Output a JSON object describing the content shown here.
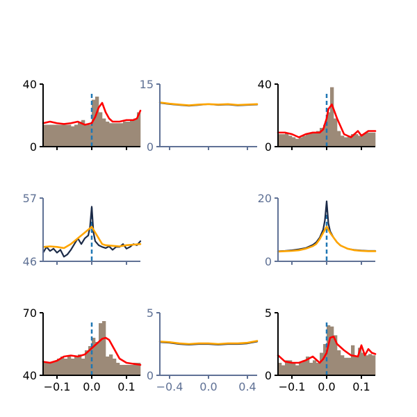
{
  "figure": {
    "background": "#ffffff",
    "colors": {
      "hist": "#9c8a78",
      "red": "#ff0000",
      "navy": "#1b2a47",
      "orange": "#ffa500",
      "dashed": "#1f77b4",
      "axis_black": "#000000",
      "axis_slate": "#5f7195"
    }
  },
  "chart_data": [
    {
      "id": "r1c1",
      "type": "bar",
      "axis_color": "black",
      "xlim": [
        -0.14,
        0.14
      ],
      "ylim": [
        0,
        40
      ],
      "ytick_labels": [
        "0",
        "40"
      ],
      "xticks": [
        -0.1,
        0.0,
        0.1
      ],
      "xtick_labels": [],
      "vline": 0,
      "hist": {
        "x0": -0.14,
        "width": 0.01,
        "values": [
          14,
          14,
          14,
          14,
          14,
          14,
          14,
          14,
          13,
          14,
          16,
          17,
          14,
          14,
          30,
          32,
          22,
          18,
          16,
          15,
          15,
          15,
          15,
          16,
          16,
          17,
          18,
          22
        ]
      },
      "lines": [
        {
          "color": "red",
          "x": [
            -0.14,
            -0.12,
            -0.1,
            -0.08,
            -0.06,
            -0.04,
            -0.02,
            0.0,
            0.01,
            0.02,
            0.03,
            0.04,
            0.05,
            0.06,
            0.08,
            0.1,
            0.12,
            0.13,
            0.14
          ],
          "y": [
            15,
            16,
            15,
            14.5,
            15,
            16,
            14,
            15,
            19,
            25,
            28,
            22,
            18,
            16,
            16,
            17,
            17,
            18,
            23
          ]
        }
      ]
    },
    {
      "id": "r1c2",
      "type": "line",
      "axis_color": "slate",
      "xlim": [
        -0.5,
        0.5
      ],
      "ylim": [
        0,
        15
      ],
      "ytick_labels": [
        "0",
        "15"
      ],
      "xticks": [
        -0.4,
        0.0,
        0.4
      ],
      "xtick_labels": [],
      "vline": null,
      "lines": [
        {
          "color": "navy",
          "x": [
            -0.5,
            -0.4,
            -0.3,
            -0.2,
            -0.1,
            0.0,
            0.1,
            0.2,
            0.3,
            0.4,
            0.5
          ],
          "y": [
            10.5,
            10.2,
            10,
            9.8,
            10,
            10.2,
            10,
            10.1,
            9.9,
            10,
            10.1
          ]
        },
        {
          "color": "orange",
          "x": [
            -0.5,
            -0.4,
            -0.3,
            -0.2,
            -0.1,
            0.0,
            0.1,
            0.2,
            0.3,
            0.4,
            0.5
          ],
          "y": [
            10.6,
            10.3,
            10.1,
            9.9,
            10.1,
            10.2,
            10.1,
            10.2,
            10,
            10.1,
            10.2
          ]
        }
      ]
    },
    {
      "id": "r1c3",
      "type": "bar",
      "axis_color": "black",
      "xlim": [
        -0.14,
        0.14
      ],
      "ylim": [
        0,
        40
      ],
      "ytick_labels": [
        "0",
        "40"
      ],
      "xticks": [
        -0.1,
        0.0,
        0.1
      ],
      "xtick_labels": [],
      "vline": 0,
      "hist": {
        "x0": -0.14,
        "width": 0.01,
        "values": [
          8,
          8,
          9,
          7,
          6,
          5,
          6,
          7,
          8,
          9,
          9,
          10,
          12,
          14,
          22,
          38,
          18,
          10,
          7,
          6,
          7,
          8,
          8,
          7,
          8,
          9,
          9,
          9
        ]
      },
      "lines": [
        {
          "color": "red",
          "x": [
            -0.14,
            -0.12,
            -0.1,
            -0.08,
            -0.06,
            -0.04,
            -0.02,
            -0.01,
            0.0,
            0.005,
            0.015,
            0.03,
            0.05,
            0.07,
            0.09,
            0.1,
            0.12,
            0.14
          ],
          "y": [
            9,
            9,
            8,
            6,
            8,
            9,
            9,
            11,
            18,
            24,
            27,
            18,
            8,
            6,
            10,
            7,
            10,
            10
          ]
        }
      ]
    },
    {
      "id": "r2c1",
      "type": "line",
      "axis_color": "slate",
      "xlim": [
        -0.14,
        0.14
      ],
      "ylim": [
        46,
        57
      ],
      "ytick_labels": [
        "46",
        "57"
      ],
      "xticks": [
        -0.1,
        0.0,
        0.1
      ],
      "xtick_labels": [],
      "vline": 0,
      "lines": [
        {
          "color": "navy",
          "x": [
            -0.14,
            -0.13,
            -0.12,
            -0.11,
            -0.1,
            -0.09,
            -0.08,
            -0.07,
            -0.06,
            -0.05,
            -0.04,
            -0.03,
            -0.02,
            -0.01,
            -0.005,
            0.0,
            0.005,
            0.01,
            0.02,
            0.03,
            0.04,
            0.05,
            0.06,
            0.07,
            0.08,
            0.09,
            0.1,
            0.11,
            0.12,
            0.13,
            0.14
          ],
          "y": [
            47.5,
            48.5,
            47.8,
            48.2,
            47.5,
            48,
            46.8,
            47.2,
            48,
            49,
            50,
            49,
            50,
            50.5,
            52,
            55.5,
            51,
            49.5,
            48.8,
            48.5,
            48.3,
            48.6,
            48,
            48.5,
            48.5,
            49,
            48.2,
            48.5,
            49,
            48.8,
            49.5
          ]
        },
        {
          "color": "orange",
          "x": [
            -0.14,
            -0.12,
            -0.1,
            -0.08,
            -0.06,
            -0.04,
            -0.02,
            0.0,
            0.01,
            0.02,
            0.03,
            0.04,
            0.06,
            0.08,
            0.1,
            0.12,
            0.14
          ],
          "y": [
            48.5,
            48.6,
            48.5,
            48.3,
            49,
            50,
            51,
            52,
            51,
            50,
            49,
            48.8,
            48.7,
            48.6,
            48.8,
            48.9,
            49
          ]
        }
      ]
    },
    {
      "id": "r2c3",
      "type": "line",
      "axis_color": "slate",
      "xlim": [
        -0.14,
        0.14
      ],
      "ylim": [
        0,
        20
      ],
      "ytick_labels": [
        "0",
        "20"
      ],
      "xticks": [
        -0.1,
        0.0,
        0.1
      ],
      "xtick_labels": [],
      "vline": 0,
      "lines": [
        {
          "color": "navy",
          "x": [
            -0.14,
            -0.12,
            -0.1,
            -0.08,
            -0.06,
            -0.04,
            -0.03,
            -0.02,
            -0.01,
            -0.005,
            0.0,
            0.005,
            0.01,
            0.02,
            0.03,
            0.04,
            0.06,
            0.08,
            0.1,
            0.12,
            0.14
          ],
          "y": [
            3.2,
            3.3,
            3.5,
            3.8,
            4.2,
            5.2,
            6,
            7.5,
            10,
            13,
            19,
            12,
            9.5,
            7.5,
            6,
            5,
            4,
            3.6,
            3.4,
            3.3,
            3.3
          ]
        },
        {
          "color": "orange",
          "x": [
            -0.14,
            -0.12,
            -0.1,
            -0.08,
            -0.06,
            -0.04,
            -0.03,
            -0.02,
            -0.01,
            0.0,
            0.01,
            0.02,
            0.03,
            0.04,
            0.06,
            0.08,
            0.1,
            0.12,
            0.14
          ],
          "y": [
            3.1,
            3.2,
            3.3,
            3.5,
            4,
            4.8,
            5.5,
            7,
            9,
            11,
            9,
            7.5,
            6,
            5,
            4,
            3.5,
            3.3,
            3.2,
            3.2
          ]
        }
      ]
    },
    {
      "id": "r3c1",
      "type": "bar",
      "axis_color": "black",
      "xlim": [
        -0.14,
        0.14
      ],
      "ylim": [
        40,
        70
      ],
      "ytick_labels": [
        "40",
        "70"
      ],
      "xticks": [
        -0.1,
        0.0,
        0.1
      ],
      "xtick_labels": [
        "−0.1",
        "0.0",
        "0.1"
      ],
      "vline": 0,
      "hist": {
        "x0": -0.14,
        "width": 0.01,
        "values": [
          46,
          46,
          46,
          47,
          48,
          49,
          48,
          49,
          48,
          49,
          50,
          48,
          52,
          54,
          58,
          56,
          65,
          66,
          49,
          50,
          48,
          46,
          45,
          45,
          45,
          45,
          46,
          46
        ]
      },
      "lines": [
        {
          "color": "red",
          "x": [
            -0.14,
            -0.12,
            -0.1,
            -0.08,
            -0.06,
            -0.04,
            -0.02,
            0.0,
            0.02,
            0.03,
            0.04,
            0.05,
            0.06,
            0.08,
            0.1,
            0.12,
            0.14
          ],
          "y": [
            46.5,
            46,
            47,
            49,
            49.5,
            49,
            50,
            53,
            56,
            57.5,
            58,
            57,
            54,
            48,
            46,
            45.5,
            45
          ]
        }
      ]
    },
    {
      "id": "r3c2",
      "type": "line",
      "axis_color": "slate",
      "xlim": [
        -0.5,
        0.5
      ],
      "ylim": [
        0,
        5
      ],
      "ytick_labels": [
        "0",
        "5"
      ],
      "xticks": [
        -0.4,
        0.0,
        0.4
      ],
      "xtick_labels": [
        "−0.4",
        "0.0",
        "0.4"
      ],
      "vline": null,
      "lines": [
        {
          "color": "navy",
          "x": [
            -0.5,
            -0.4,
            -0.3,
            -0.2,
            -0.1,
            0.0,
            0.1,
            0.2,
            0.3,
            0.4,
            0.5
          ],
          "y": [
            2.65,
            2.6,
            2.5,
            2.45,
            2.5,
            2.5,
            2.45,
            2.5,
            2.5,
            2.55,
            2.7
          ]
        },
        {
          "color": "orange",
          "x": [
            -0.5,
            -0.4,
            -0.3,
            -0.2,
            -0.1,
            0.0,
            0.1,
            0.2,
            0.3,
            0.4,
            0.5
          ],
          "y": [
            2.7,
            2.65,
            2.55,
            2.5,
            2.55,
            2.55,
            2.5,
            2.55,
            2.55,
            2.6,
            2.75
          ]
        }
      ]
    },
    {
      "id": "r3c3",
      "type": "bar",
      "axis_color": "black",
      "xlim": [
        -0.14,
        0.14
      ],
      "ylim": [
        0,
        5
      ],
      "ytick_labels": [
        "0",
        "5"
      ],
      "xticks": [
        -0.1,
        0.0,
        0.1
      ],
      "xtick_labels": [
        "−0.1",
        "0.0",
        "0.1"
      ],
      "vline": 0,
      "hist": {
        "x0": -0.14,
        "width": 0.01,
        "values": [
          1.0,
          0.8,
          1.2,
          1.2,
          1.0,
          0.8,
          1.0,
          1.2,
          1.5,
          1.0,
          1.2,
          1.0,
          1.8,
          2.5,
          4.0,
          3.9,
          3.2,
          2.0,
          1.6,
          1.4,
          1.4,
          2.4,
          1.5,
          2.2,
          1.8,
          1.6,
          1.7,
          1.6
        ]
      },
      "lines": [
        {
          "color": "red",
          "x": [
            -0.14,
            -0.12,
            -0.1,
            -0.08,
            -0.06,
            -0.04,
            -0.02,
            -0.01,
            0.0,
            0.01,
            0.02,
            0.03,
            0.05,
            0.07,
            0.09,
            0.1,
            0.11,
            0.12,
            0.13,
            0.14
          ],
          "y": [
            1.6,
            1.1,
            1.0,
            1.0,
            1.2,
            1.5,
            1.0,
            1.3,
            1.8,
            3.0,
            3.1,
            2.5,
            2.0,
            1.6,
            1.5,
            2.4,
            1.6,
            2.1,
            1.8,
            1.7
          ]
        }
      ]
    }
  ]
}
